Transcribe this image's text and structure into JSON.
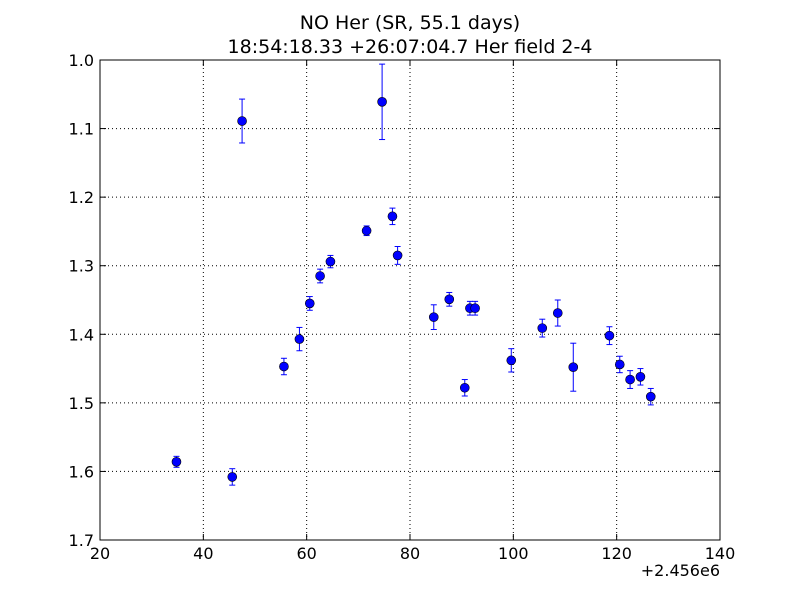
{
  "chart_data": {
    "type": "scatter",
    "title": "NO Her (SR, 55.1 days)",
    "subtitle": "18:54:18.33 +26:07:04.7 Her field 2-4",
    "xlabel": "",
    "ylabel": "",
    "x_offset_label": "+2.456e6",
    "xlim": [
      20,
      140
    ],
    "ylim": [
      1.7,
      1.0
    ],
    "y_inverted": true,
    "grid": true,
    "marker_color": "#0000ff",
    "x_ticks": [
      20,
      40,
      60,
      80,
      100,
      120,
      140
    ],
    "x_tick_labels": [
      "20",
      "40",
      "60",
      "80",
      "100",
      "120",
      "140"
    ],
    "y_ticks": [
      1.0,
      1.1,
      1.2,
      1.3,
      1.4,
      1.5,
      1.6,
      1.7
    ],
    "y_tick_labels": [
      "1.0",
      "1.1",
      "1.2",
      "1.3",
      "1.4",
      "1.5",
      "1.6",
      "1.7"
    ],
    "points": [
      {
        "x": 34.8,
        "y": 1.586,
        "err": 0.008
      },
      {
        "x": 45.6,
        "y": 1.608,
        "err": 0.012
      },
      {
        "x": 47.5,
        "y": 1.089,
        "err": 0.032
      },
      {
        "x": 55.6,
        "y": 1.447,
        "err": 0.012
      },
      {
        "x": 58.6,
        "y": 1.407,
        "err": 0.017
      },
      {
        "x": 60.6,
        "y": 1.355,
        "err": 0.01
      },
      {
        "x": 62.6,
        "y": 1.315,
        "err": 0.01
      },
      {
        "x": 64.6,
        "y": 1.294,
        "err": 0.009
      },
      {
        "x": 71.6,
        "y": 1.249,
        "err": 0.007
      },
      {
        "x": 74.6,
        "y": 1.061,
        "err": 0.055
      },
      {
        "x": 76.6,
        "y": 1.228,
        "err": 0.012
      },
      {
        "x": 77.6,
        "y": 1.285,
        "err": 0.013
      },
      {
        "x": 84.6,
        "y": 1.375,
        "err": 0.018
      },
      {
        "x": 87.6,
        "y": 1.349,
        "err": 0.01
      },
      {
        "x": 90.6,
        "y": 1.478,
        "err": 0.012
      },
      {
        "x": 91.6,
        "y": 1.362,
        "err": 0.01
      },
      {
        "x": 92.6,
        "y": 1.362,
        "err": 0.01
      },
      {
        "x": 99.6,
        "y": 1.438,
        "err": 0.017
      },
      {
        "x": 105.6,
        "y": 1.391,
        "err": 0.013
      },
      {
        "x": 108.6,
        "y": 1.369,
        "err": 0.019
      },
      {
        "x": 111.6,
        "y": 1.448,
        "err": 0.035
      },
      {
        "x": 118.6,
        "y": 1.402,
        "err": 0.013
      },
      {
        "x": 120.6,
        "y": 1.444,
        "err": 0.012
      },
      {
        "x": 122.6,
        "y": 1.466,
        "err": 0.013
      },
      {
        "x": 124.6,
        "y": 1.462,
        "err": 0.012
      },
      {
        "x": 126.6,
        "y": 1.491,
        "err": 0.012
      }
    ]
  }
}
